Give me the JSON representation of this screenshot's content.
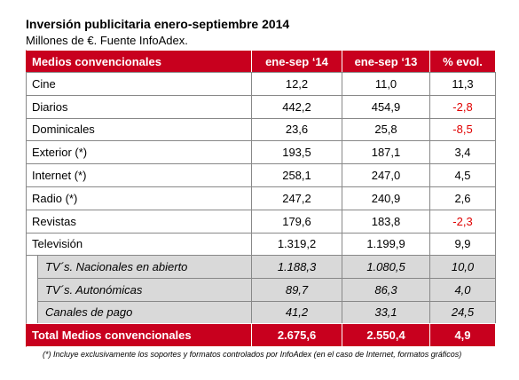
{
  "title": "Inversión publicitaria enero-septiembre 2014",
  "subtitle": "Millones de €. Fuente InfoAdex.",
  "table": {
    "header": [
      "Medios convencionales",
      "ene-sep ‘14",
      "ene-sep ‘13",
      "% evol."
    ],
    "rows": [
      [
        "Cine",
        "12,2",
        "11,0",
        "11,3"
      ],
      [
        "Diarios",
        "442,2",
        "454,9",
        "-2,8"
      ],
      [
        "Dominicales",
        "23,6",
        "25,8",
        "-8,5"
      ],
      [
        "Exterior (*)",
        "193,5",
        "187,1",
        "3,4"
      ],
      [
        "Internet (*)",
        "258,1",
        "247,0",
        "4,5"
      ],
      [
        "Radio (*)",
        "247,2",
        "240,9",
        "2,6"
      ],
      [
        "Revistas",
        "179,6",
        "183,8",
        "-2,3"
      ],
      [
        "Televisión",
        "1.319,2",
        "1.199,9",
        "9,9"
      ]
    ],
    "subrows": [
      [
        "TV´s. Nacionales en abierto",
        "1.188,3",
        "1.080,5",
        "10,0"
      ],
      [
        "TV´s. Autonómicas",
        "89,7",
        "86,3",
        "4,0"
      ],
      [
        "Canales de pago",
        "41,2",
        "33,1",
        "24,5"
      ]
    ],
    "total": [
      "Total Medios convencionales",
      "2.675,6",
      "2.550,4",
      "4,9"
    ]
  },
  "footnote": "(*) Incluye exclusivamente los soportes y formatos controlados por InfoAdex (en el caso de Internet, formatos gráficos)"
}
